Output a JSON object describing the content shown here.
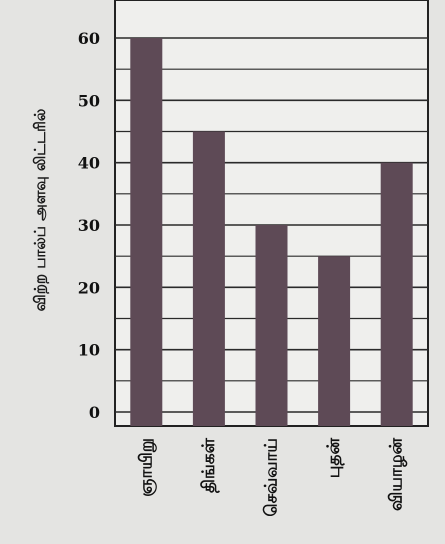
{
  "chart_data": {
    "type": "bar",
    "title": "",
    "xlabel": "",
    "ylabel": "விற்ற பால்ப் அளவு லிட்டரில்",
    "categories": [
      "ஞாயிறு",
      "திங்கள்",
      "செவ்வாய்",
      "புதன்",
      "வியாழன்"
    ],
    "values": [
      60,
      45,
      30,
      25,
      40
    ],
    "yticks": [
      0,
      10,
      20,
      30,
      40,
      50,
      60
    ],
    "ylim": [
      0,
      60
    ],
    "grid": true,
    "bar_color": "#5e4a56"
  }
}
